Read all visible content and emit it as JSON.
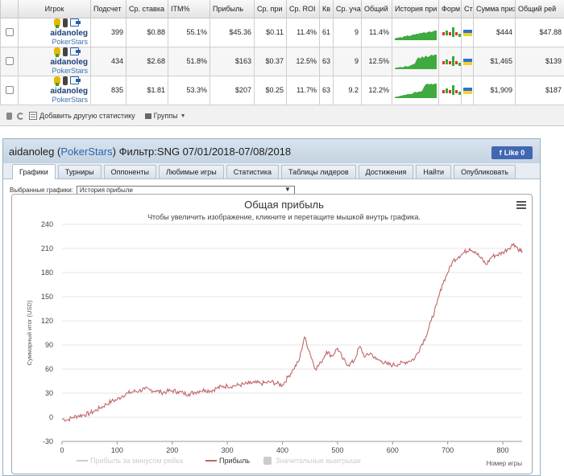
{
  "table": {
    "headers": [
      "Игрок",
      "Подсчет",
      "Ср. ставка",
      "ITM%",
      "Прибыль",
      "Ср. при",
      "Ср. ROI",
      "Кв",
      "Ср. уча",
      "Общий",
      "История при",
      "Форм",
      "Ст",
      "Сумма приз",
      "Общий рей"
    ],
    "rows": [
      {
        "name": "aidanoleg",
        "network": "PokerStars",
        "count": "399",
        "avg_stake": "$0.88",
        "itm": "55.1%",
        "profit": "$45.36",
        "avg_profit": "$0.11",
        "avg_roi": "11.4%",
        "kv": "61",
        "avg_entrants": "9",
        "total_roi": "11.4%",
        "prize_sum": "$444",
        "rake": "$47.88",
        "spark": [
          2,
          3,
          3,
          4,
          3,
          5,
          5,
          6,
          5,
          6,
          7,
          7,
          8,
          8,
          9,
          9,
          10,
          9,
          10,
          11,
          10,
          11,
          12,
          12
        ]
      },
      {
        "name": "aidanoleg",
        "network": "PokerStars",
        "count": "434",
        "avg_stake": "$2.68",
        "itm": "51.8%",
        "profit": "$163",
        "avg_profit": "$0.37",
        "avg_roi": "12.5%",
        "kv": "63",
        "avg_entrants": "9",
        "total_roi": "12.5%",
        "prize_sum": "$1,465",
        "rake": "$139",
        "spark": [
          1,
          2,
          2,
          3,
          2,
          3,
          4,
          3,
          4,
          5,
          6,
          7,
          12,
          15,
          13,
          16,
          14,
          17,
          15,
          16,
          18,
          17,
          18,
          18
        ]
      },
      {
        "name": "aidanoleg",
        "network": "PokerStars",
        "count": "835",
        "avg_stake": "$1.81",
        "itm": "53.3%",
        "profit": "$207",
        "avg_profit": "$0.25",
        "avg_roi": "11.7%",
        "kv": "63",
        "avg_entrants": "9.2",
        "total_roi": "12.2%",
        "prize_sum": "$1,909",
        "rake": "$187",
        "spark": [
          1,
          2,
          2,
          3,
          3,
          4,
          4,
          5,
          5,
          5,
          6,
          8,
          7,
          8,
          8,
          9,
          14,
          17,
          18,
          17,
          18,
          17,
          18,
          18
        ]
      }
    ]
  },
  "toolbar": {
    "add_stats": "Добавить другую статистику",
    "groups": "Группы"
  },
  "panel": {
    "player": "aidanoleg",
    "network": "PokerStars",
    "filter": "Фильтр:SNG 07/01/2018-07/08/2018",
    "fb_like": "Like 0",
    "tabs": [
      "Графики",
      "Турниры",
      "Оппоненты",
      "Любимые игры",
      "Статистика",
      "Таблицы лидеров",
      "Достижения",
      "Найти",
      "Опубликовать"
    ],
    "selected_label": "Выбранные графики:",
    "selected_value": "История прибыли"
  },
  "chart_data": {
    "type": "line",
    "title": "Общая прибыль",
    "subtitle": "Чтобы увеличить изображение, кликните и перетащите мышкой внутрь графика.",
    "xlabel": "Номер игры",
    "ylabel": "Суммарный итог (USD)",
    "xlim": [
      0,
      835
    ],
    "ylim": [
      -30,
      240
    ],
    "xticks": [
      0,
      100,
      200,
      300,
      400,
      500,
      600,
      700,
      800
    ],
    "yticks": [
      -30,
      0,
      30,
      60,
      90,
      120,
      150,
      180,
      210,
      240
    ],
    "grid": true,
    "legend_position": "bottom",
    "series": [
      {
        "name": "Прибыль за минусом рейка",
        "color": "#cccccc",
        "visible": false,
        "values": []
      },
      {
        "name": "Прибыль",
        "color": "#c06666",
        "visible": true,
        "x": [
          0,
          10,
          20,
          30,
          40,
          50,
          60,
          70,
          80,
          90,
          100,
          110,
          120,
          130,
          140,
          150,
          160,
          170,
          180,
          190,
          200,
          210,
          220,
          230,
          240,
          250,
          260,
          270,
          280,
          290,
          300,
          310,
          320,
          330,
          340,
          350,
          360,
          370,
          380,
          390,
          400,
          410,
          420,
          430,
          440,
          450,
          460,
          470,
          480,
          490,
          500,
          510,
          520,
          530,
          540,
          550,
          560,
          570,
          580,
          590,
          600,
          610,
          620,
          630,
          640,
          650,
          660,
          670,
          680,
          690,
          700,
          710,
          720,
          730,
          740,
          750,
          760,
          770,
          780,
          790,
          800,
          810,
          820,
          830,
          835
        ],
        "values": [
          -2,
          -3,
          0,
          2,
          3,
          5,
          8,
          12,
          16,
          20,
          22,
          27,
          30,
          32,
          33,
          35,
          34,
          33,
          31,
          32,
          33,
          32,
          30,
          29,
          31,
          33,
          34,
          33,
          36,
          38,
          39,
          39,
          40,
          41,
          42,
          43,
          42,
          43,
          44,
          42,
          40,
          50,
          60,
          70,
          100,
          80,
          60,
          68,
          82,
          76,
          86,
          72,
          65,
          70,
          88,
          75,
          80,
          72,
          70,
          66,
          65,
          66,
          68,
          70,
          73,
          87,
          100,
          120,
          140,
          165,
          180,
          195,
          200,
          205,
          210,
          206,
          198,
          190,
          200,
          202,
          205,
          210,
          216,
          208,
          207
        ]
      },
      {
        "name": "Значительные выигрыши",
        "color": "#cccccc",
        "visible": false,
        "values": []
      }
    ]
  }
}
